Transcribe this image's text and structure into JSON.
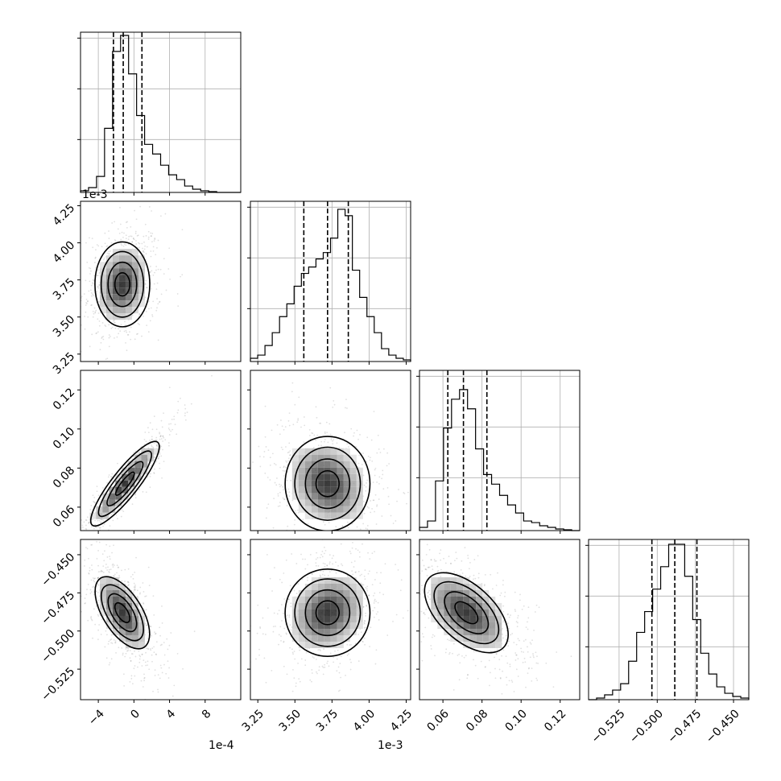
{
  "chart_data": {
    "type": "corner",
    "parameters": [
      {
        "range": [
          -6,
          12
        ],
        "offset_text": "1e-4",
        "hist": [
          0.01,
          0.03,
          0.1,
          0.4,
          0.88,
          0.98,
          0.74,
          0.48,
          0.3,
          0.24,
          0.17,
          0.11,
          0.08,
          0.04,
          0.02,
          0.01,
          0.005,
          0,
          0,
          0
        ],
        "quantiles": [
          -2.3,
          -1.2,
          0.9
        ],
        "ticks": [
          -4,
          0,
          4,
          8
        ],
        "tick_labels": [
          "−4",
          "0",
          "4",
          "8"
        ]
      },
      {
        "range": [
          3.2,
          4.28
        ],
        "offset_text": "1e-3",
        "hist": [
          0.02,
          0.04,
          0.1,
          0.18,
          0.28,
          0.36,
          0.47,
          0.55,
          0.59,
          0.64,
          0.68,
          0.77,
          0.95,
          0.91,
          0.57,
          0.4,
          0.28,
          0.18,
          0.08,
          0.04,
          0.02,
          0.01
        ],
        "quantiles": [
          3.56,
          3.72,
          3.86
        ],
        "ticks": [
          3.25,
          3.5,
          3.75,
          4.0,
          4.25
        ],
        "tick_labels": [
          "3.25",
          "3.50",
          "3.75",
          "4.00",
          "4.25"
        ]
      },
      {
        "range": [
          0.048,
          0.13
        ],
        "hist": [
          0.02,
          0.06,
          0.31,
          0.64,
          0.82,
          0.88,
          0.76,
          0.51,
          0.35,
          0.29,
          0.22,
          0.16,
          0.11,
          0.06,
          0.05,
          0.03,
          0.02,
          0.01,
          0.005,
          0
        ],
        "quantiles": [
          0.0625,
          0.0705,
          0.0825
        ],
        "ticks": [
          0.06,
          0.08,
          0.1,
          0.12
        ],
        "tick_labels": [
          "0.06",
          "0.08",
          "0.10",
          "0.12"
        ]
      },
      {
        "range": [
          -0.545,
          -0.44
        ],
        "hist": [
          0,
          0.01,
          0.03,
          0.06,
          0.1,
          0.24,
          0.42,
          0.55,
          0.69,
          0.83,
          0.97,
          0.97,
          0.77,
          0.5,
          0.29,
          0.16,
          0.08,
          0.04,
          0.02,
          0.01
        ],
        "quantiles": [
          -0.5035,
          -0.4885,
          -0.474
        ],
        "ticks": [
          -0.525,
          -0.5,
          -0.475,
          -0.45
        ],
        "tick_labels": [
          "−0.525",
          "−0.500",
          "−0.475",
          "−0.450"
        ]
      }
    ],
    "pairs": [
      {
        "row": 1,
        "col": 0,
        "center": [
          -1.3,
          3.72
        ],
        "spread": [
          1.4,
          0.13
        ],
        "rho": 0.15
      },
      {
        "row": 2,
        "col": 0,
        "center": [
          -1.0,
          0.072
        ],
        "spread": [
          1.9,
          0.011
        ],
        "rho": 0.93
      },
      {
        "row": 2,
        "col": 1,
        "center": [
          3.72,
          0.072
        ],
        "spread": [
          0.13,
          0.011
        ],
        "rho": -0.22
      },
      {
        "row": 3,
        "col": 0,
        "center": [
          -1.3,
          -0.488
        ],
        "spread": [
          1.4,
          0.013
        ],
        "rho": -0.63
      },
      {
        "row": 3,
        "col": 1,
        "center": [
          3.72,
          -0.488
        ],
        "spread": [
          0.13,
          0.013
        ],
        "rho": 0.22
      },
      {
        "row": 3,
        "col": 2,
        "center": [
          0.072,
          -0.488
        ],
        "spread": [
          0.011,
          0.013
        ],
        "rho": -0.55
      }
    ],
    "grid": true,
    "colors": {
      "points": "#000000",
      "contour": "#000000",
      "quantile": "#000000"
    }
  }
}
